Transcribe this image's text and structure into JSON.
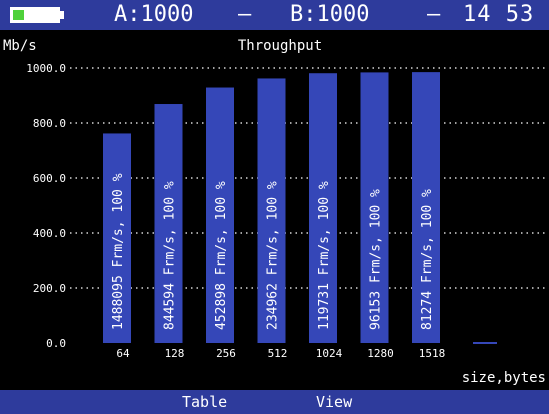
{
  "header": {
    "battery_level": 0.25,
    "battery_color": "#4fd13a",
    "a_label": "A:1000",
    "separator": "–",
    "b_label": "B:1000",
    "time": "14 53"
  },
  "chart_data": {
    "type": "bar",
    "title": "Throughput",
    "ylabel": "Mb/s",
    "xlabel": "size,bytes",
    "ylim": [
      0,
      1000
    ],
    "yticks": [
      "0.0",
      "200.0",
      "400.0",
      "600.0",
      "800.0",
      "1000.0"
    ],
    "categories": [
      "64",
      "128",
      "256",
      "512",
      "1024",
      "1280",
      "1518"
    ],
    "values": [
      762,
      869,
      929,
      962,
      981,
      984,
      985
    ],
    "bar_labels": [
      "1488095 Frm/s, 100 %",
      "844594 Frm/s, 100 %",
      "452898 Frm/s, 100 %",
      "234962 Frm/s, 100 %",
      "119731 Frm/s, 100 %",
      "96153 Frm/s, 100 %",
      "81274 Frm/s, 100 %"
    ],
    "grid": true,
    "bar_color": "#3547b8"
  },
  "menu": {
    "table_label": "Table",
    "view_label": "View"
  }
}
